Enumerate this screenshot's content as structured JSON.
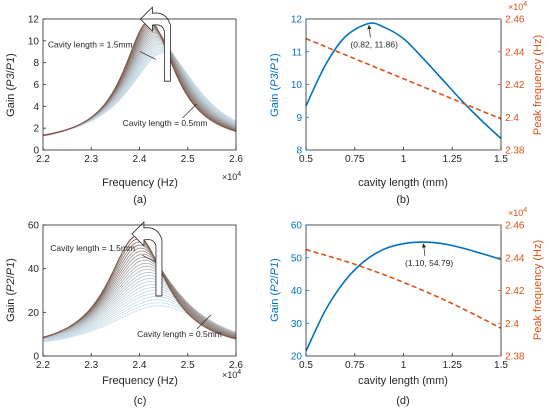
{
  "colors": {
    "axis": "#262626",
    "blue": "#0072BD",
    "orange": "#D95319",
    "curve_light": "#C8DCE8",
    "curve_dark": "#7A5A4E"
  },
  "chart_data": [
    {
      "type": "line",
      "id": "a",
      "panel_label": "(a)",
      "xlabel": "Frequency (Hz)",
      "ylabel_parts": [
        "Gain (",
        "P3",
        "/",
        "P1",
        ")"
      ],
      "xlim": [
        22000,
        26000
      ],
      "ylim": [
        0,
        12
      ],
      "xticks": [
        22000,
        23000,
        24000,
        25000,
        26000
      ],
      "xtick_labels": [
        "2.2",
        "2.3",
        "2.4",
        "2.5",
        "2.6"
      ],
      "x_exponent": "×10",
      "x_exponent_power": "4",
      "yticks": [
        0,
        2,
        4,
        6,
        8,
        10,
        12
      ],
      "ytick_labels": [
        "0",
        "2",
        "4",
        "6",
        "8",
        "10",
        "12"
      ],
      "family": {
        "count": 24,
        "center_start": 24500,
        "center_end": 24200,
        "peak_start": 8.9,
        "peak_end": 11.8,
        "half_width_start": 900,
        "half_width_end": 650,
        "base": 0.4
      },
      "annotations": [
        {
          "text": "Cavity length = 1.5mm",
          "x": 22100,
          "y": 9.4
        },
        {
          "text": "Cavity length = 0.5mm",
          "x": 23650,
          "y": 2.2
        }
      ]
    },
    {
      "type": "line",
      "id": "b",
      "panel_label": "(b)",
      "xlabel": "cavity length (mm)",
      "ylabel_left_parts": [
        "Gain (",
        "P3",
        "/",
        "P1",
        ")"
      ],
      "ylabel_right": "Peak frequency (Hz)",
      "xlim": [
        0.5,
        1.5
      ],
      "ylim_left": [
        8,
        12
      ],
      "ylim_right": [
        23800,
        24600
      ],
      "xticks": [
        0.5,
        0.75,
        1,
        1.25,
        1.5
      ],
      "xtick_labels": [
        "0.5",
        "0.75",
        "1",
        "1.25",
        "1.5"
      ],
      "yticks_left": [
        8,
        9,
        10,
        11,
        12
      ],
      "ytick_labels_left": [
        "8",
        "9",
        "10",
        "11",
        "12"
      ],
      "yticks_right": [
        23800,
        24000,
        24200,
        24400,
        24600
      ],
      "ytick_labels_right": [
        "2.38",
        "2.4",
        "2.42",
        "2.44",
        "2.46"
      ],
      "right_exponent": "×10",
      "right_exponent_power": "4",
      "series": [
        {
          "axis": "left",
          "style": "solid",
          "color": "blue",
          "x": [
            0.5,
            0.6,
            0.7,
            0.82,
            0.9,
            1.0,
            1.1,
            1.2,
            1.3,
            1.4,
            1.5
          ],
          "y": [
            9.35,
            10.6,
            11.45,
            11.86,
            11.75,
            11.4,
            10.8,
            10.15,
            9.5,
            8.9,
            8.35
          ]
        },
        {
          "axis": "right",
          "style": "dashed",
          "color": "orange",
          "x": [
            0.5,
            1.5
          ],
          "y": [
            24480,
            23990
          ]
        }
      ],
      "peak_label": "(0.82, 11.86)",
      "peak_point": {
        "x": 0.82,
        "y": 11.86
      }
    },
    {
      "type": "line",
      "id": "c",
      "panel_label": "(c)",
      "xlabel": "Frequency (Hz)",
      "ylabel_parts": [
        "Gain (",
        "P2",
        "/",
        "P1",
        ")"
      ],
      "xlim": [
        22000,
        26000
      ],
      "ylim": [
        0,
        60
      ],
      "xticks": [
        22000,
        23000,
        24000,
        25000,
        26000
      ],
      "xtick_labels": [
        "2.2",
        "2.3",
        "2.4",
        "2.5",
        "2.6"
      ],
      "x_exponent": "×10",
      "x_exponent_power": "4",
      "yticks": [
        0,
        20,
        40,
        60
      ],
      "ytick_labels": [
        "0",
        "20",
        "40",
        "60"
      ],
      "family": {
        "count": 24,
        "center_start": 24400,
        "center_end": 23950,
        "peak_start": 23,
        "peak_end": 55,
        "half_width_start": 1300,
        "half_width_end": 750,
        "base": 1.5
      },
      "annotations": [
        {
          "text": "Cavity length = 1.5mm",
          "x": 22150,
          "y": 48
        },
        {
          "text": "Cavity length = 0.5mm",
          "x": 23950,
          "y": 8.8
        }
      ]
    },
    {
      "type": "line",
      "id": "d",
      "panel_label": "(d)",
      "xlabel": "cavity length (mm)",
      "ylabel_left_parts": [
        "Gain (",
        "P2",
        "/",
        "P1",
        ")"
      ],
      "ylabel_right": "Peak frequency (Hz)",
      "xlim": [
        0.5,
        1.5
      ],
      "ylim_left": [
        20,
        60
      ],
      "ylim_right": [
        23800,
        24600
      ],
      "xticks": [
        0.5,
        0.75,
        1,
        1.25,
        1.5
      ],
      "xtick_labels": [
        "0.5",
        "0.75",
        "1",
        "1.25",
        "1.5"
      ],
      "yticks_left": [
        20,
        30,
        40,
        50,
        60
      ],
      "ytick_labels_left": [
        "20",
        "30",
        "40",
        "50",
        "60"
      ],
      "yticks_right": [
        23800,
        24000,
        24200,
        24400,
        24600
      ],
      "ytick_labels_right": [
        "2.38",
        "2.4",
        "2.42",
        "2.44",
        "2.46"
      ],
      "right_exponent": "×10",
      "right_exponent_power": "4",
      "series": [
        {
          "axis": "left",
          "style": "solid",
          "color": "blue",
          "x": [
            0.5,
            0.6,
            0.7,
            0.8,
            0.9,
            1.0,
            1.1,
            1.2,
            1.3,
            1.4,
            1.5
          ],
          "y": [
            21.5,
            34.0,
            43.0,
            49.0,
            52.6,
            54.3,
            54.79,
            54.3,
            53.0,
            51.3,
            49.5
          ]
        },
        {
          "axis": "right",
          "style": "dashed",
          "color": "orange",
          "x": [
            0.5,
            0.75,
            1.0,
            1.25,
            1.5
          ],
          "y": [
            24450,
            24360,
            24250,
            24120,
            23970
          ]
        }
      ],
      "peak_label": "(1.10, 54.79)",
      "peak_point": {
        "x": 1.1,
        "y": 54.79
      }
    }
  ]
}
